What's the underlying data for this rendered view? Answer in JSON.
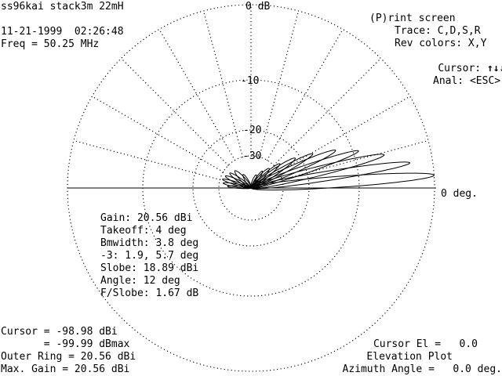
{
  "header": {
    "title": "ss96kai stack3m 22mH",
    "datetime": "11-21-1999  02:26:48",
    "freq": "Freq = 50.25 MHz"
  },
  "menu": {
    "print": "(P)rint screen",
    "trace": "Trace: C,D,S,R",
    "rev_colors": "Rev colors: X,Y",
    "cursor": "Cursor:",
    "cursor_icons": "↑↓↓←",
    "anal": "Anal: <ESC>"
  },
  "plot": {
    "ring_labels": [
      "0 dB",
      "-10",
      "-20",
      "-30"
    ],
    "zero_deg_label": "0 deg."
  },
  "stats": {
    "gain": "Gain: 20.56 dBi",
    "takeoff": "Takeoff: 4 deg",
    "bmwidth": "Bmwidth: 3.8 deg",
    "minus3": "-3: 1.9, 5.7 deg",
    "slobe": "Slobe: 18.89 dBi",
    "angle": "Angle: 12 deg",
    "fslobe": "F/Slobe: 1.67 dB"
  },
  "footer_left": {
    "cursor": "Cursor = -98.98 dBi",
    "cursor_max": "       = -99.99 dBmax",
    "outer_ring": "Outer Ring = 20.56 dBi",
    "max_gain": "Max. Gain = 20.56 dBi"
  },
  "footer_right": {
    "cursor_el": "Cursor El =   0.0",
    "plot_type": "Elevation Plot",
    "azimuth": "Azimuth Angle =   0.0 deg."
  },
  "colors": {
    "background": "#ffffff",
    "foreground": "#000000"
  }
}
